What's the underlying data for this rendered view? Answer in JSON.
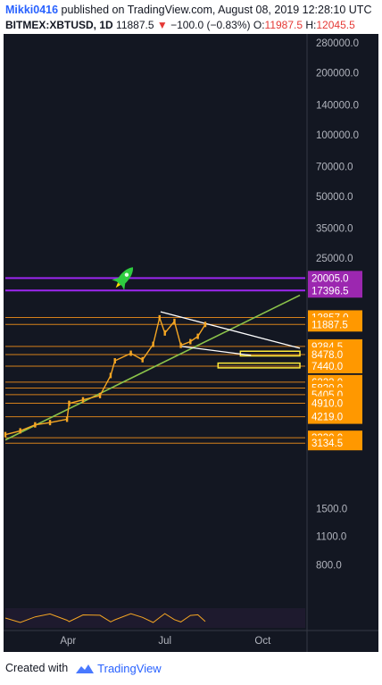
{
  "header": {
    "author": "Mikki0416",
    "published_text": " published on TradingView.com, August 08, 2019 12:28:10 UTC",
    "symbol": "BITMEX:XBTUSD, 1D",
    "last": "11887.5",
    "change_arrow": "▼",
    "change": "−100.0 (−0.83%)",
    "open_label": "O:",
    "open": "11987.5",
    "high_label": "H:",
    "high": "12045.5"
  },
  "footer": {
    "created_with": "Created with",
    "brand": "TradingView",
    "brand_icon": "tradingview-logo-icon"
  },
  "rocket_icon": "rocket-icon",
  "colors": {
    "background": "#131722",
    "candle": "#f5a623",
    "support_lines": "#f7931a",
    "purple_lines": "#9c27f0",
    "trendline": "#8bc34a",
    "wedge": "#ffffff",
    "targets": "#ffeb3b",
    "axis_text": "#b2b5be",
    "label_bg": "#ff9800",
    "purple_label_bg": "#9c27b0"
  },
  "chart_data": {
    "type": "candlestick",
    "symbol": "BITMEX:XBTUSD",
    "interval": "1D",
    "y_scale": "log",
    "ylim": [
      560,
      310000
    ],
    "y_ticks": [
      280000.0,
      200000.0,
      140000.0,
      100000.0,
      70000.0,
      50000.0,
      35000.0,
      25000.0,
      1500.0,
      1100.0,
      800.0
    ],
    "y_ticks_text": [
      "280000.0",
      "200000.0",
      "140000.0",
      "100000.0",
      "70000.0",
      "50000.0",
      "35000.0",
      "25000.0",
      "1500.0",
      "1100.0",
      "800.0"
    ],
    "x_range": [
      "2019-02-01",
      "2019-11-10"
    ],
    "x_ticks": [
      {
        "date": "2019-04-01",
        "label": "Apr"
      },
      {
        "date": "2019-07-01",
        "label": "Jul"
      },
      {
        "date": "2019-10-01",
        "label": "Oct"
      }
    ],
    "price_levels": [
      {
        "value": 20005.0,
        "label": "20005.0",
        "style": "purple"
      },
      {
        "value": 17396.5,
        "label": "17396.5",
        "style": "purple"
      },
      {
        "value": 12857.0,
        "label": "12857.0",
        "style": "orange"
      },
      {
        "value": 11887.5,
        "label": "11887.5",
        "style": "orange"
      },
      {
        "value": 9284.5,
        "label": "9284.5",
        "style": "orange"
      },
      {
        "value": 8478.0,
        "label": "8478.0",
        "style": "orange"
      },
      {
        "value": 7440.0,
        "label": "7440.0",
        "style": "orange"
      },
      {
        "value": 6223.0,
        "label": "6223.0",
        "style": "orange"
      },
      {
        "value": 5820.0,
        "label": "5820.0",
        "style": "orange"
      },
      {
        "value": 5405.0,
        "label": "5405.0",
        "style": "orange"
      },
      {
        "value": 4910.0,
        "label": "4910.0",
        "style": "orange"
      },
      {
        "value": 4219.0,
        "label": "4219.0",
        "style": "orange"
      },
      {
        "value": 3330.0,
        "label": "3330.0",
        "style": "orange"
      },
      {
        "value": 3134.5,
        "label": "3134.5",
        "style": "orange"
      }
    ],
    "price_closes": [
      {
        "date": "2019-02-01",
        "value": 3450
      },
      {
        "date": "2019-02-15",
        "value": 3600
      },
      {
        "date": "2019-03-01",
        "value": 3850
      },
      {
        "date": "2019-03-15",
        "value": 3950
      },
      {
        "date": "2019-03-31",
        "value": 4100
      },
      {
        "date": "2019-04-02",
        "value": 4900
      },
      {
        "date": "2019-04-15",
        "value": 5100
      },
      {
        "date": "2019-05-01",
        "value": 5350
      },
      {
        "date": "2019-05-11",
        "value": 6700
      },
      {
        "date": "2019-05-15",
        "value": 7900
      },
      {
        "date": "2019-05-30",
        "value": 8600
      },
      {
        "date": "2019-06-10",
        "value": 8000
      },
      {
        "date": "2019-06-20",
        "value": 9500
      },
      {
        "date": "2019-06-26",
        "value": 12800
      },
      {
        "date": "2019-07-01",
        "value": 10800
      },
      {
        "date": "2019-07-10",
        "value": 12300
      },
      {
        "date": "2019-07-16",
        "value": 9400
      },
      {
        "date": "2019-07-25",
        "value": 9800
      },
      {
        "date": "2019-08-01",
        "value": 10400
      },
      {
        "date": "2019-08-08",
        "value": 11887.5
      }
    ],
    "trendline": {
      "start": {
        "date": "2019-02-01",
        "value": 3250
      },
      "end": {
        "date": "2019-11-05",
        "value": 16500
      }
    },
    "wedge_upper": {
      "start": {
        "date": "2019-06-27",
        "value": 13700
      },
      "end": {
        "date": "2019-11-05",
        "value": 9100
      }
    },
    "wedge_lower": {
      "start": {
        "date": "2019-07-16",
        "value": 9300
      },
      "end": {
        "date": "2019-09-20",
        "value": 8400
      }
    },
    "target_zones": [
      {
        "from_date": "2019-09-10",
        "to_date": "2019-11-05",
        "low": 8350,
        "high": 8800
      },
      {
        "from_date": "2019-08-20",
        "to_date": "2019-11-05",
        "low": 7300,
        "high": 7700
      }
    ],
    "indicator": {
      "type": "oscillator",
      "panel": "bottom"
    },
    "grid": false,
    "legend": "none"
  }
}
